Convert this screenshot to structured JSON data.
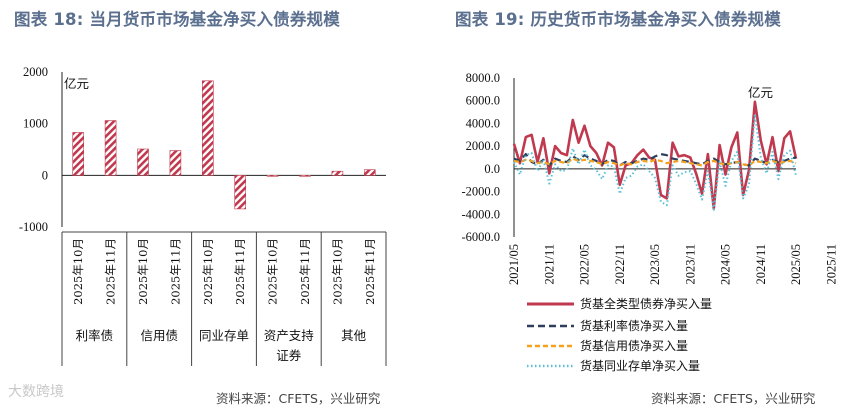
{
  "left_title": "图表 18: 当月货币市场基金净买入债券规模",
  "right_title": "图表 19: 历史货币市场基金净买入债券规模",
  "left_source": "资料来源：CFETS，兴业研究",
  "right_source": "资料来源：CFETS，兴业研究",
  "watermark": "大数跨境",
  "colors": {
    "red": "#c0394e",
    "navy": "#2e3f5e",
    "orange": "#f4a21e",
    "cyan": "#5bc0d6"
  },
  "chart_data": [
    {
      "type": "bar",
      "unit_label": "亿元",
      "ylim": [
        -1000,
        2000
      ],
      "yticks": [
        "2000",
        "1000",
        "0",
        "-1000"
      ],
      "groups": [
        {
          "label": "利率债",
          "categories": [
            "2025年10月",
            "2025年11月"
          ],
          "values": [
            830,
            1060
          ]
        },
        {
          "label": "信用债",
          "categories": [
            "2025年10月",
            "2025年11月"
          ],
          "values": [
            510,
            480
          ]
        },
        {
          "label": "同业存单",
          "categories": [
            "2025年10月",
            "2025年11月"
          ],
          "values": [
            1830,
            -650
          ]
        },
        {
          "label": "资产支持证券",
          "categories": [
            "2025年10月",
            "2025年11月"
          ],
          "values": [
            -10,
            -5
          ]
        },
        {
          "label": "其他",
          "categories": [
            "2025年10月",
            "2025年11月"
          ],
          "values": [
            80,
            110
          ]
        }
      ]
    },
    {
      "type": "line",
      "unit_label": "亿元",
      "ylim": [
        -6000,
        8000
      ],
      "yticks": [
        "8000.0",
        "6000.0",
        "4000.0",
        "2000.0",
        "0.0",
        "-2000.0",
        "-4000.0",
        "-6000.0"
      ],
      "xticks": [
        "2021/05",
        "2021/11",
        "2022/05",
        "2022/11",
        "2023/05",
        "2023/11",
        "2024/05",
        "2024/11",
        "2025/05",
        "2025/11"
      ],
      "x_start": "2021/05",
      "series": [
        {
          "name": "货基全类型债券净买入量",
          "color": "red",
          "values": [
            2200,
            500,
            2800,
            3000,
            600,
            2700,
            -400,
            2000,
            1400,
            1200,
            4300,
            2300,
            3800,
            2000,
            1400,
            300,
            2300,
            1900,
            -1400,
            300,
            500,
            1200,
            1700,
            1000,
            800,
            -2300,
            -2600,
            2300,
            1100,
            1200,
            1000,
            -400,
            -2200,
            1300,
            -3500,
            2100,
            -500,
            1900,
            3200,
            -2300,
            -100,
            5900,
            2500,
            400,
            2800,
            -200,
            2700,
            3300,
            900
          ]
        },
        {
          "name": "货基利率债净买入量",
          "color": "navy",
          "values": [
            900,
            700,
            1300,
            600,
            400,
            800,
            300,
            900,
            700,
            600,
            1100,
            800,
            1200,
            900,
            700,
            400,
            800,
            700,
            300,
            600,
            500,
            700,
            900,
            800,
            1100,
            1300,
            1200,
            900,
            800,
            700,
            600,
            500,
            400,
            700,
            900,
            600,
            400,
            500,
            600,
            400,
            300,
            900,
            700,
            500,
            800,
            600,
            700,
            900,
            1000
          ]
        },
        {
          "name": "货基信用债净买入量",
          "color": "orange",
          "values": [
            700,
            600,
            800,
            700,
            500,
            600,
            400,
            700,
            600,
            500,
            900,
            700,
            800,
            700,
            600,
            400,
            600,
            500,
            300,
            500,
            400,
            600,
            700,
            600,
            800,
            700,
            500,
            600,
            700,
            600,
            500,
            400,
            300,
            600,
            700,
            500,
            400,
            500,
            600,
            400,
            300,
            700,
            600,
            500,
            700,
            500,
            600,
            700,
            500
          ]
        },
        {
          "name": "货基同业存单净买入量",
          "color": "cyan",
          "values": [
            600,
            -500,
            1200,
            1400,
            -200,
            800,
            -1300,
            400,
            -200,
            -100,
            1800,
            400,
            1700,
            300,
            -100,
            -900,
            300,
            200,
            -2200,
            -800,
            -600,
            200,
            400,
            -200,
            -800,
            -2900,
            -3200,
            300,
            -600,
            -300,
            -200,
            -1300,
            -2700,
            -200,
            -3600,
            600,
            -1500,
            700,
            1500,
            -2600,
            -1400,
            4800,
            1000,
            -400,
            1500,
            -900,
            1200,
            1600,
            -600
          ]
        }
      ],
      "legend_position": "bottom"
    }
  ]
}
